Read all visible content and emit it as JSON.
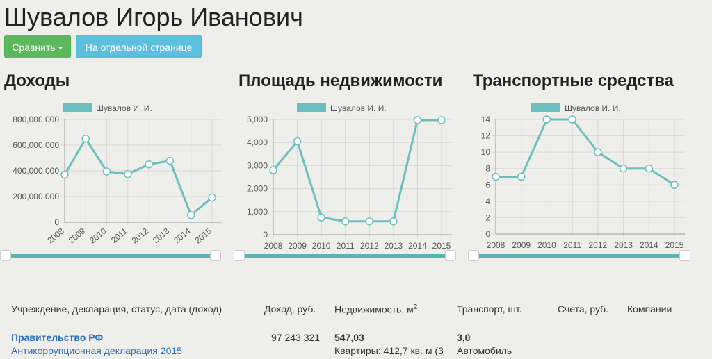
{
  "person_name": "Шувалов Игорь Иванович",
  "buttons": {
    "compare": "Сравнить",
    "separate_page": "На отдельной странице"
  },
  "charts": [
    {
      "title": "Доходы"
    },
    {
      "title": "Площадь недвижимости"
    },
    {
      "title": "Транспортные средства"
    }
  ],
  "chart_data": [
    {
      "type": "line",
      "title": "Доходы",
      "x": [
        "2008",
        "2009",
        "2010",
        "2011",
        "2012",
        "2013",
        "2014",
        "2015"
      ],
      "series": [
        {
          "name": "Шувалов И. И.",
          "values": [
            370000000,
            650000000,
            395000000,
            375000000,
            450000000,
            478000000,
            55000000,
            192000000
          ]
        }
      ],
      "ylim": [
        0,
        800000000
      ],
      "yticks": [
        0,
        200000000,
        400000000,
        600000000,
        800000000
      ],
      "ytick_labels": [
        "0",
        "200,000,000",
        "400,000,000",
        "600,000,000",
        "800,000,000"
      ],
      "color": "#6bbfbf",
      "grid": true,
      "legend": "top"
    },
    {
      "type": "line",
      "title": "Площадь недвижимости",
      "x": [
        "2008",
        "2009",
        "2010",
        "2011",
        "2012",
        "2013",
        "2014",
        "2015"
      ],
      "series": [
        {
          "name": "Шувалов И. И.",
          "values": [
            2800,
            4050,
            750,
            580,
            580,
            580,
            4970,
            4970
          ]
        }
      ],
      "ylim": [
        0,
        5000
      ],
      "yticks": [
        0,
        1000,
        2000,
        3000,
        4000,
        5000
      ],
      "ytick_labels": [
        "0",
        "1,000",
        "2,000",
        "3,000",
        "4,000",
        "5,000"
      ],
      "color": "#6bbfbf",
      "grid": true,
      "legend": "top"
    },
    {
      "type": "line",
      "title": "Транспортные средства",
      "x": [
        "2008",
        "2009",
        "2010",
        "2011",
        "2012",
        "2013",
        "2014",
        "2015"
      ],
      "series": [
        {
          "name": "Шувалов И. И.",
          "values": [
            7,
            7,
            14,
            14,
            10,
            8,
            8,
            6
          ]
        }
      ],
      "ylim": [
        0,
        14
      ],
      "yticks": [
        0,
        2,
        4,
        6,
        8,
        10,
        12,
        14
      ],
      "ytick_labels": [
        "0",
        "2",
        "4",
        "6",
        "8",
        "10",
        "12",
        "14"
      ],
      "color": "#6bbfbf",
      "grid": true,
      "legend": "top"
    }
  ],
  "table": {
    "headers": {
      "institution": "Учреждение, декларация, статус, дата (доход)",
      "income": "Доход, руб.",
      "realty": "Недвижимость, м",
      "realty_sup": "2",
      "transport": "Транспорт, шт.",
      "accounts": "Счета, руб.",
      "companies": "Компании"
    },
    "rows": [
      {
        "org": "Правительство РФ",
        "declaration": "Антикоррупционная декларация 2015",
        "income": "97 243 321",
        "realty": "547,03",
        "realty_detail": "Квартиры: 412,7 кв. м (3",
        "transport": "3,0",
        "transport_detail": "Автомобиль"
      }
    ]
  }
}
